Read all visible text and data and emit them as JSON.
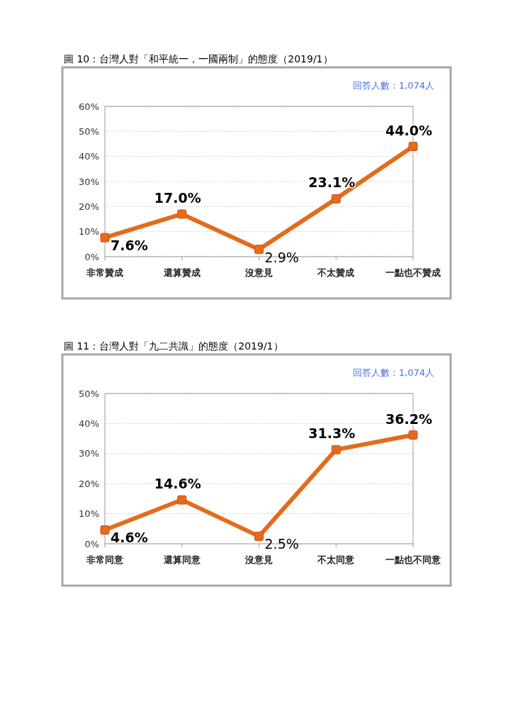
{
  "chart_data": [
    {
      "type": "line",
      "title": "圖 10：台灣人對「和平統一，一國兩制」的態度（2019/1）",
      "annotations": [
        "回答人數：1,074人"
      ],
      "categories": [
        "非常贊成",
        "還算贊成",
        "沒意見",
        "不太贊成",
        "一點也不贊成"
      ],
      "series": [
        {
          "color": "#e36c1c",
          "values": [
            7.6,
            17.0,
            2.9,
            23.1,
            44.0
          ],
          "value_labels": [
            "7.6%",
            "17.0%",
            "2.9%",
            "23.1%",
            "44.0%"
          ]
        }
      ],
      "ylim": [
        0,
        60
      ],
      "yticks": [
        {
          "value": 0,
          "label": "0%"
        },
        {
          "value": 10,
          "label": "10%"
        },
        {
          "value": 20,
          "label": "20%"
        },
        {
          "value": 30,
          "label": "30%"
        },
        {
          "value": 40,
          "label": "40%"
        },
        {
          "value": 50,
          "label": "50%"
        },
        {
          "value": 60,
          "label": "60%"
        }
      ],
      "grid": "y",
      "marker": "square"
    },
    {
      "type": "line",
      "title": "圖 11：台灣人對「九二共識」的態度（2019/1）",
      "annotations": [
        "回答人數：1,074人"
      ],
      "categories": [
        "非常同意",
        "還算同意",
        "沒意見",
        "不太同意",
        "一點也不同意"
      ],
      "series": [
        {
          "color": "#e36c1c",
          "values": [
            4.6,
            14.6,
            2.5,
            31.3,
            36.2
          ],
          "value_labels": [
            "4.6%",
            "14.6%",
            "2.5%",
            "31.3%",
            "36.2%"
          ]
        }
      ],
      "ylim": [
        0,
        50
      ],
      "yticks": [
        {
          "value": 0,
          "label": "0%"
        },
        {
          "value": 10,
          "label": "10%"
        },
        {
          "value": 20,
          "label": "20%"
        },
        {
          "value": 30,
          "label": "30%"
        },
        {
          "value": 40,
          "label": "40%"
        },
        {
          "value": 50,
          "label": "50%"
        }
      ],
      "grid": "y",
      "marker": "square"
    }
  ]
}
